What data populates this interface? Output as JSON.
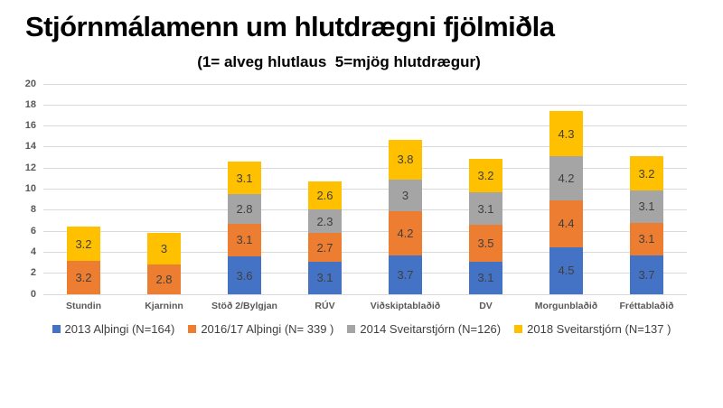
{
  "title": "Stjórnmálamenn um hlutdrægni fjölmiðla",
  "subtitle": "(1= alveg hlutlaus  5=mjög hlutdrægur)",
  "chart_data": {
    "type": "bar",
    "stacked": true,
    "title": "Stjórnmálamenn um hlutdrægni fjölmiðla",
    "subtitle": "(1= alveg hlutlaus  5=mjög hlutdrægur)",
    "xlabel": "",
    "ylabel": "",
    "ylim": [
      0,
      20
    ],
    "yticks": [
      0,
      2,
      4,
      6,
      8,
      10,
      12,
      14,
      16,
      18,
      20
    ],
    "grid": true,
    "legend_position": "bottom",
    "categories": [
      "Stundin",
      "Kjarninn",
      "Stöð 2/Bylgjan",
      "RÚV",
      "Viðskiptablaðið",
      "DV",
      "Morgunblaðið",
      "Fréttablaðið"
    ],
    "series": [
      {
        "name": "2013 Alþingi (N=164)",
        "color": "#4472c4",
        "values": [
          null,
          null,
          3.6,
          3.1,
          3.7,
          3.1,
          4.5,
          3.7
        ]
      },
      {
        "name": "2016/17 Alþingi (N= 339 )",
        "color": "#ed7d31",
        "values": [
          3.2,
          2.8,
          3.1,
          2.7,
          4.2,
          3.5,
          4.4,
          3.1
        ]
      },
      {
        "name": "2014 Sveitarstjórn (N=126)",
        "color": "#a5a5a5",
        "values": [
          null,
          null,
          2.8,
          2.3,
          3,
          3.1,
          4.2,
          3.1
        ]
      },
      {
        "name": "2018 Sveitarstjórn (N=137 )",
        "color": "#ffc000",
        "values": [
          3.2,
          3,
          3.1,
          2.6,
          3.8,
          3.2,
          4.3,
          3.2
        ]
      }
    ]
  },
  "colors": {
    "gridline": "#d9d9d9",
    "axis_text": "#595959",
    "data_label": "#3f3f3f",
    "legend_text": "#404040",
    "title_text": "#000000"
  }
}
